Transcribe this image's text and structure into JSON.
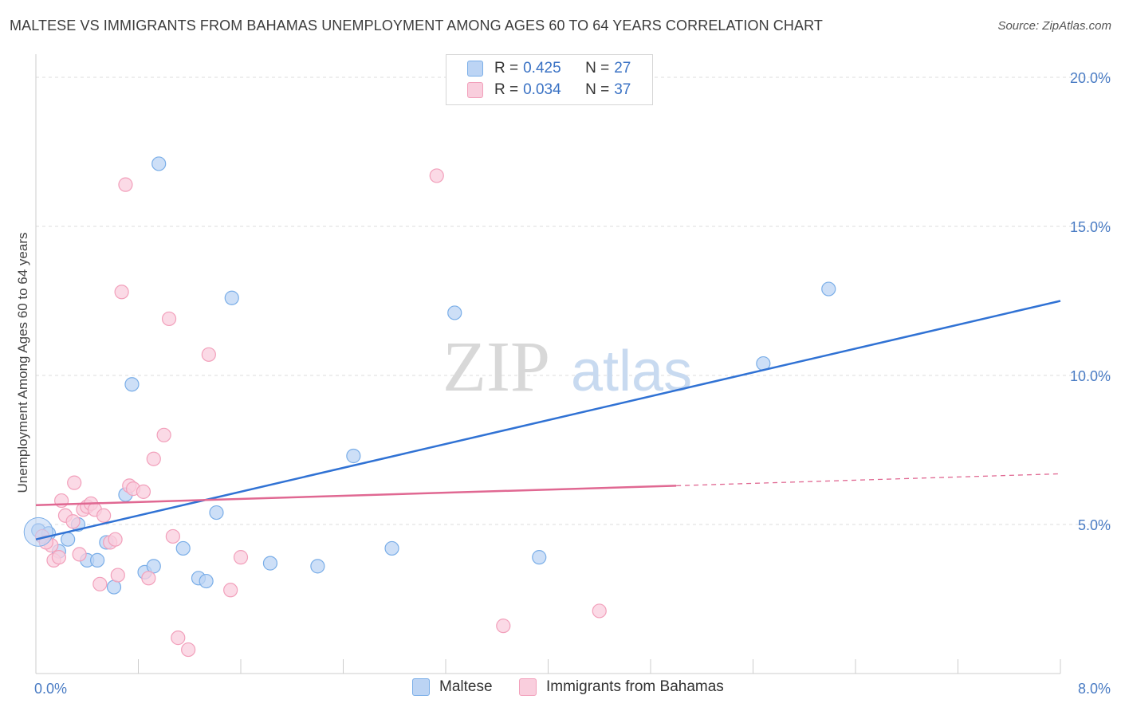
{
  "title": "MALTESE VS IMMIGRANTS FROM BAHAMAS UNEMPLOYMENT AMONG AGES 60 TO 64 YEARS CORRELATION CHART",
  "source": "Source: ZipAtlas.com",
  "watermark": {
    "zip": "ZIP",
    "atlas": "atlas"
  },
  "legend": {
    "r_label": "R =",
    "n_label": "N =",
    "series": [
      {
        "r": "0.425",
        "n": "27"
      },
      {
        "r": "0.034",
        "n": "37"
      }
    ]
  },
  "chart_data": {
    "type": "scatter",
    "title": "MALTESE VS IMMIGRANTS FROM BAHAMAS UNEMPLOYMENT AMONG AGES 60 TO 64 YEARS CORRELATION CHART",
    "xlabel": "",
    "ylabel": "Unemployment Among Ages 60 to 64 years",
    "xlim": [
      0,
      8
    ],
    "ylim": [
      0,
      20
    ],
    "x_tick_labels": [
      {
        "value": 0,
        "label": "0.0%"
      },
      {
        "value": 8,
        "label": "8.0%"
      }
    ],
    "y_tick_labels": [
      {
        "value": 5,
        "label": "5.0%"
      },
      {
        "value": 10,
        "label": "10.0%"
      },
      {
        "value": 15,
        "label": "15.0%"
      },
      {
        "value": 20,
        "label": "20.0%"
      }
    ],
    "series": [
      {
        "name": "Maltese",
        "color": "#7aaee8",
        "fill": "#bcd4f4",
        "line_color": "#3072d4",
        "trend": {
          "x0": 0.0,
          "y0": 4.5,
          "x1": 8.0,
          "y1": 12.5
        },
        "points": [
          [
            0.02,
            4.8
          ],
          [
            0.1,
            4.7
          ],
          [
            0.25,
            4.5
          ],
          [
            0.18,
            4.1
          ],
          [
            0.33,
            5.0
          ],
          [
            0.4,
            3.8
          ],
          [
            0.48,
            3.8
          ],
          [
            0.55,
            4.4
          ],
          [
            0.61,
            2.9
          ],
          [
            0.7,
            6.0
          ],
          [
            0.75,
            9.7
          ],
          [
            0.85,
            3.4
          ],
          [
            0.92,
            3.6
          ],
          [
            0.96,
            17.1
          ],
          [
            1.15,
            4.2
          ],
          [
            1.27,
            3.2
          ],
          [
            1.33,
            3.1
          ],
          [
            1.41,
            5.4
          ],
          [
            1.53,
            12.6
          ],
          [
            1.83,
            3.7
          ],
          [
            2.2,
            3.6
          ],
          [
            2.48,
            7.3
          ],
          [
            2.78,
            4.2
          ],
          [
            3.27,
            12.1
          ],
          [
            3.93,
            3.9
          ],
          [
            5.68,
            10.4
          ],
          [
            6.19,
            12.9
          ]
        ]
      },
      {
        "name": "Immigrants from Bahamas",
        "color": "#f2a0bb",
        "fill": "#f9cedd",
        "line_color": "#e06892",
        "trend": {
          "x0": 0.0,
          "y0": 5.65,
          "x1": 5.0,
          "y1": 6.3
        },
        "trend_dashed": {
          "x0": 5.0,
          "y0": 6.3,
          "x1": 8.0,
          "y1": 6.7
        },
        "points": [
          [
            0.05,
            4.6
          ],
          [
            0.12,
            4.3
          ],
          [
            0.14,
            3.8
          ],
          [
            0.18,
            3.9
          ],
          [
            0.2,
            5.8
          ],
          [
            0.23,
            5.3
          ],
          [
            0.29,
            5.1
          ],
          [
            0.3,
            6.4
          ],
          [
            0.34,
            4.0
          ],
          [
            0.37,
            5.5
          ],
          [
            0.4,
            5.6
          ],
          [
            0.43,
            5.7
          ],
          [
            0.46,
            5.5
          ],
          [
            0.5,
            3.0
          ],
          [
            0.53,
            5.3
          ],
          [
            0.58,
            4.4
          ],
          [
            0.62,
            4.5
          ],
          [
            0.64,
            3.3
          ],
          [
            0.67,
            12.8
          ],
          [
            0.7,
            16.4
          ],
          [
            0.73,
            6.3
          ],
          [
            0.76,
            6.2
          ],
          [
            0.84,
            6.1
          ],
          [
            0.88,
            3.2
          ],
          [
            0.92,
            7.2
          ],
          [
            1.0,
            8.0
          ],
          [
            1.04,
            11.9
          ],
          [
            1.07,
            4.6
          ],
          [
            1.11,
            1.2
          ],
          [
            1.19,
            0.8
          ],
          [
            1.35,
            10.7
          ],
          [
            1.52,
            2.8
          ],
          [
            1.6,
            3.9
          ],
          [
            3.13,
            16.7
          ],
          [
            3.65,
            1.6
          ],
          [
            4.4,
            2.1
          ],
          [
            0.08,
            4.4
          ]
        ]
      }
    ]
  }
}
